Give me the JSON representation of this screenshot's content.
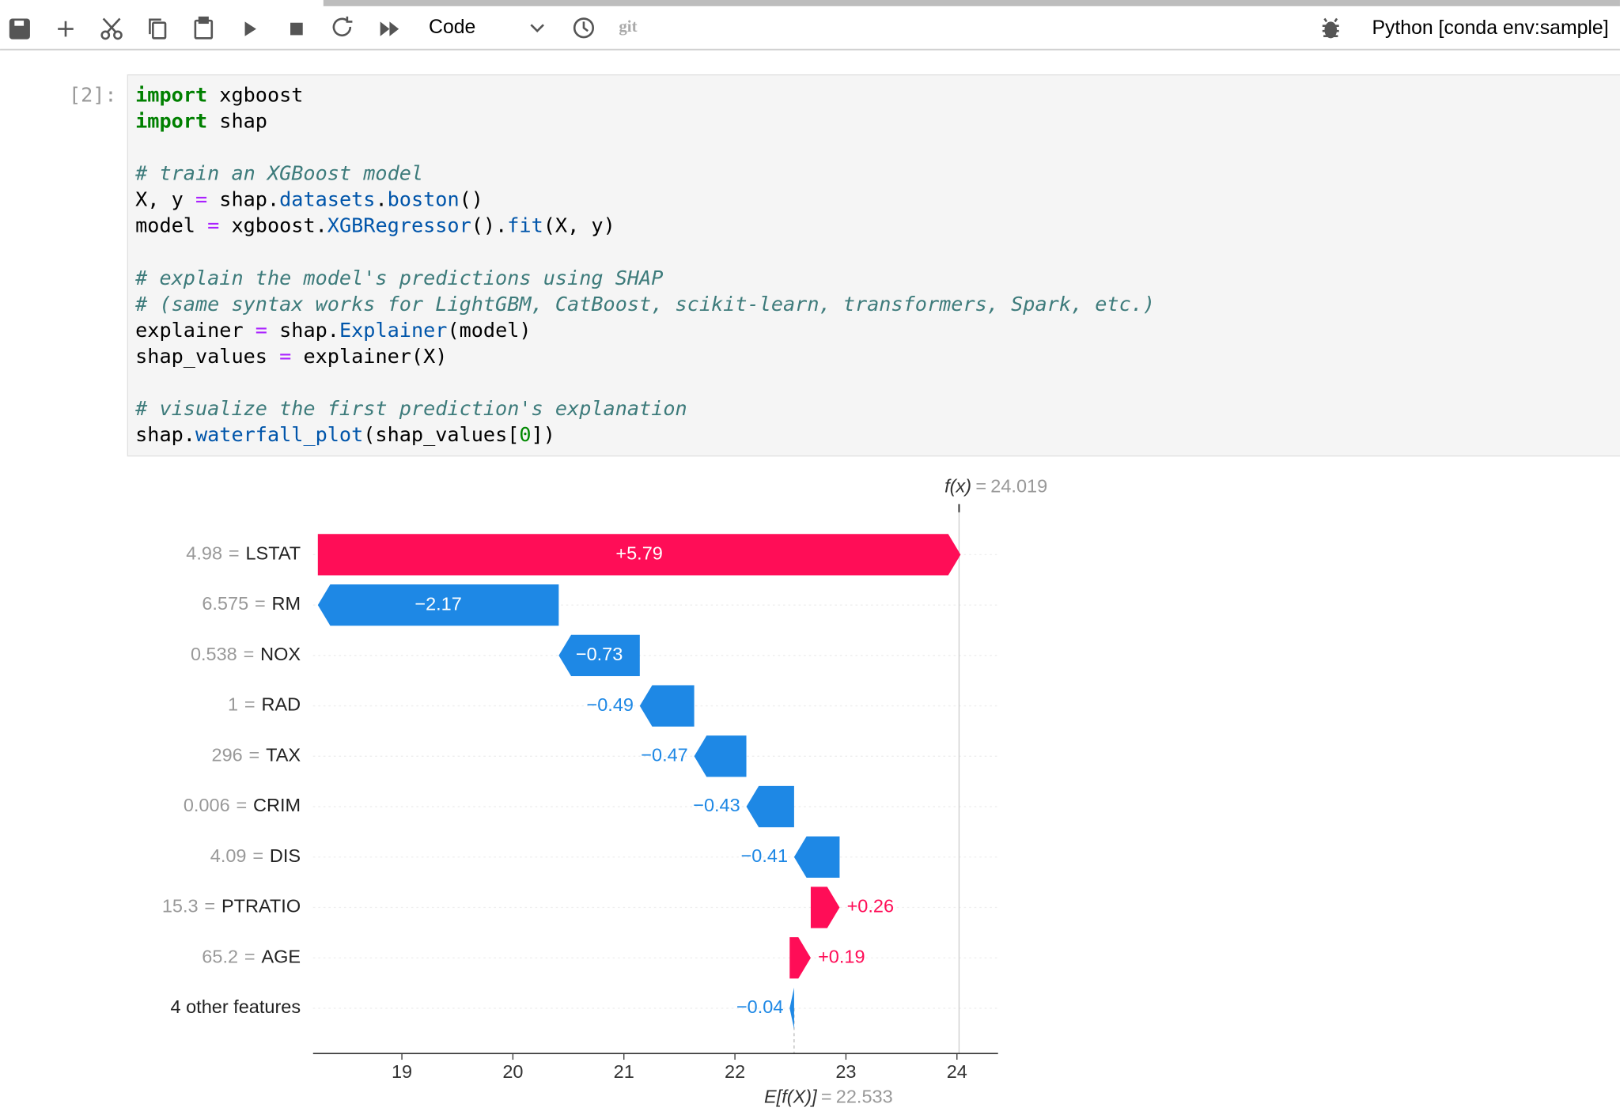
{
  "toolbar": {
    "cell_type": "Code",
    "git": "git",
    "kernel": "Python [conda env:sample]"
  },
  "cell": {
    "prompt": "[2]:",
    "lines": [
      [
        {
          "text": "import",
          "color": "#008000",
          "style": "bold"
        },
        " xgboost"
      ],
      [
        {
          "text": "import",
          "color": "#008000",
          "style": "bold"
        },
        " shap"
      ],
      [],
      [
        {
          "text": "# train an XGBoost model",
          "color": "#3d7b7b",
          "style": "italic"
        }
      ],
      [
        "X, y ",
        {
          "text": "=",
          "color": "#aa22ff"
        },
        " shap.",
        {
          "text": "datasets",
          "color": "#0055aa"
        },
        ".",
        {
          "text": "boston",
          "color": "#0055aa"
        },
        "()"
      ],
      [
        "model ",
        {
          "text": "=",
          "color": "#aa22ff"
        },
        " xgboost.",
        {
          "text": "XGBRegressor",
          "color": "#0055aa"
        },
        "().",
        {
          "text": "fit",
          "color": "#0055aa"
        },
        "(X, y)"
      ],
      [],
      [
        {
          "text": "# explain the model's predictions using SHAP",
          "color": "#3d7b7b",
          "style": "italic"
        }
      ],
      [
        {
          "text": "# (same syntax works for LightGBM, CatBoost, scikit-learn, transformers, Spark, etc.)",
          "color": "#3d7b7b",
          "style": "italic"
        }
      ],
      [
        "explainer ",
        {
          "text": "=",
          "color": "#aa22ff"
        },
        " shap.",
        {
          "text": "Explainer",
          "color": "#0055aa"
        },
        "(model)"
      ],
      [
        "shap_values ",
        {
          "text": "=",
          "color": "#aa22ff"
        },
        " explainer(X)"
      ],
      [],
      [
        {
          "text": "# visualize the first prediction's explanation",
          "color": "#3d7b7b",
          "style": "italic"
        }
      ],
      [
        "shap.",
        {
          "text": "waterfall_plot",
          "color": "#0055aa"
        },
        "(shap_values[",
        {
          "text": "0",
          "color": "#008800"
        },
        "])"
      ]
    ]
  },
  "chart_data": {
    "type": "waterfall",
    "categories": [
      "LSTAT",
      "RM",
      "NOX",
      "RAD",
      "TAX",
      "CRIM",
      "DIS",
      "PTRATIO",
      "AGE",
      "4 other features"
    ],
    "feature_values": [
      "4.98",
      "6.575",
      "0.538",
      "1",
      "296",
      "0.006",
      "4.09",
      "15.3",
      "65.2",
      null
    ],
    "label_separator": "=",
    "values": [
      5.79,
      -2.17,
      -0.73,
      -0.49,
      -0.47,
      -0.43,
      -0.41,
      0.26,
      0.19,
      -0.04
    ],
    "value_labels": [
      "+5.79",
      "−2.17",
      "−0.73",
      "−0.49",
      "−0.47",
      "−0.43",
      "−0.41",
      "+0.26",
      "+0.19",
      "−0.04"
    ],
    "positive_color": "#ff0d57",
    "negative_color": "#1e88e5",
    "fx_label": "f(x)",
    "fx_value": 24.019,
    "expected_label": "E[f(X)]",
    "expected_value": 22.533,
    "xlim": [
      18.2,
      24.37
    ],
    "xticks": [
      19,
      20,
      21,
      22,
      23,
      24
    ]
  }
}
